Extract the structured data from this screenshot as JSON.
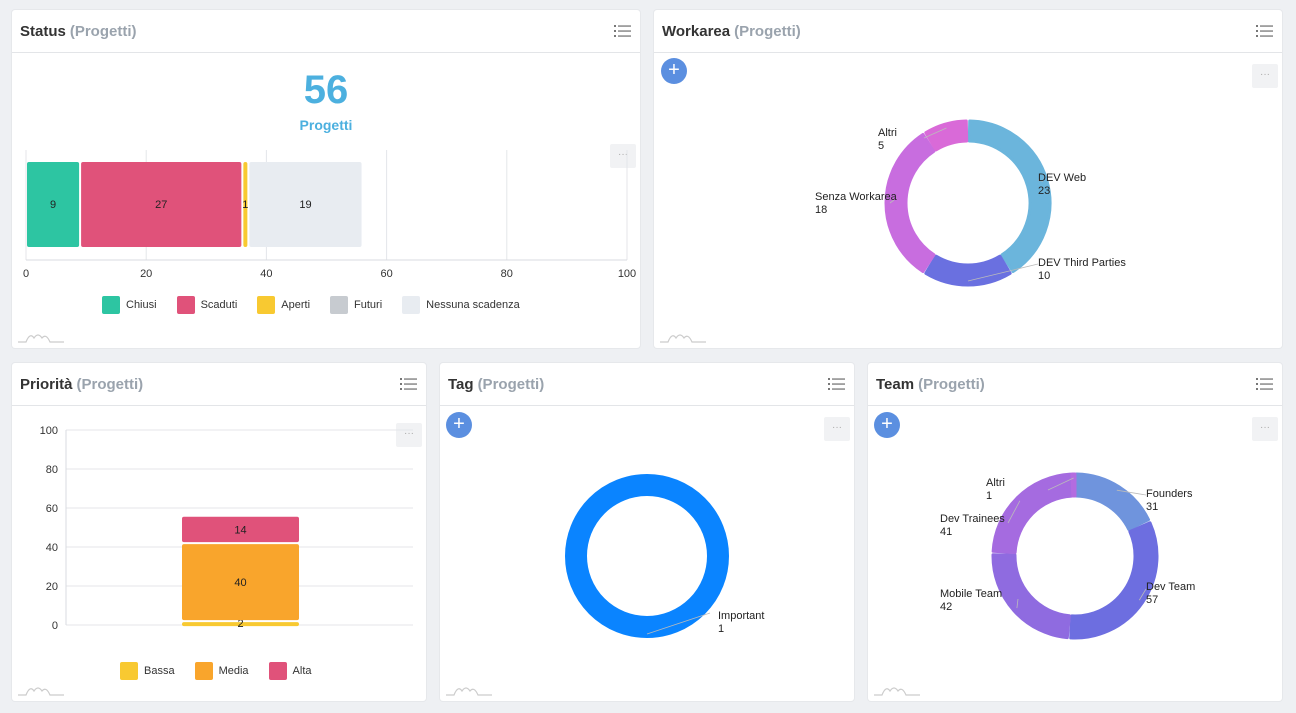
{
  "colors": {
    "accent": "#5b8fe0",
    "number": "#4cb0df",
    "chiusi": "#2dc5a2",
    "scaduti": "#e0527a",
    "aperti": "#f8c931",
    "futuri": "#c7cbd0",
    "nessuna": "#e8ecf1",
    "media": "#f9a52c",
    "important": "#0a84ff"
  },
  "icons": {
    "menu": "list-menu-icon",
    "add": "plus-icon",
    "more": "ellipsis-icon",
    "spark": "sparkline-icon"
  },
  "status": {
    "title": "Status",
    "subtitle": "(Progetti)",
    "total": "56",
    "total_label": "Progetti",
    "chart_data": {
      "type": "bar",
      "orientation": "horizontal-stacked",
      "series": [
        {
          "name": "Chiusi",
          "value": 9,
          "label": "9",
          "color": "#2dc5a2"
        },
        {
          "name": "Scaduti",
          "value": 27,
          "label": "27",
          "color": "#e0527a"
        },
        {
          "name": "Aperti",
          "value": 1,
          "label": "1",
          "color": "#f8c931"
        },
        {
          "name": "Futuri",
          "value": 0,
          "label": "",
          "color": "#c7cbd0"
        },
        {
          "name": "Nessuna scadenza",
          "value": 19,
          "label": "19",
          "color": "#e8ecf1"
        }
      ],
      "xlim": [
        0,
        100
      ],
      "xticks": [
        "0",
        "20",
        "40",
        "60",
        "80",
        "100"
      ],
      "legend_position": "bottom"
    }
  },
  "workarea": {
    "title": "Workarea",
    "subtitle": "(Progetti)",
    "add_label": "+",
    "more_label": "···",
    "chart_data": {
      "type": "pie",
      "variant": "donut",
      "slices": [
        {
          "name": "DEV Web",
          "value": 23,
          "value_label": "23",
          "color": "#6bb5dc"
        },
        {
          "name": "DEV Third Parties",
          "value": 10,
          "value_label": "10",
          "color": "#6a70e0"
        },
        {
          "name": "Senza Workarea",
          "value": 18,
          "value_label": "18",
          "color": "#c86ddf"
        },
        {
          "name": "Altri",
          "value": 5,
          "value_label": "5",
          "color": "#d96ad8"
        }
      ]
    }
  },
  "priorita": {
    "title": "Priorità",
    "subtitle": "(Progetti)",
    "more_label": "···",
    "chart_data": {
      "type": "bar",
      "orientation": "vertical-stacked",
      "categories": [
        ""
      ],
      "series": [
        {
          "name": "Bassa",
          "values": [
            2
          ],
          "label": "2",
          "color": "#f8c931"
        },
        {
          "name": "Media",
          "values": [
            40
          ],
          "label": "40",
          "color": "#f9a52c"
        },
        {
          "name": "Alta",
          "values": [
            14
          ],
          "label": "14",
          "color": "#e0527a"
        }
      ],
      "ylim": [
        0,
        100
      ],
      "yticks": [
        "100",
        "80",
        "60",
        "40",
        "20",
        "0"
      ],
      "legend_position": "bottom"
    }
  },
  "tag": {
    "title": "Tag",
    "subtitle": "(Progetti)",
    "add_label": "+",
    "more_label": "···",
    "chart_data": {
      "type": "pie",
      "variant": "donut",
      "slices": [
        {
          "name": "Important",
          "value": 1,
          "value_label": "1",
          "color": "#0a84ff"
        }
      ]
    }
  },
  "team": {
    "title": "Team",
    "subtitle": "(Progetti)",
    "add_label": "+",
    "more_label": "···",
    "chart_data": {
      "type": "pie",
      "variant": "donut",
      "slices": [
        {
          "name": "Founders",
          "value": 31,
          "value_label": "31",
          "color": "#6f94dd"
        },
        {
          "name": "Dev Team",
          "value": 57,
          "value_label": "57",
          "color": "#6d6ee0"
        },
        {
          "name": "Mobile Team",
          "value": 42,
          "value_label": "42",
          "color": "#8f6be0"
        },
        {
          "name": "Dev Trainees",
          "value": 41,
          "value_label": "41",
          "color": "#a56be0"
        },
        {
          "name": "Altri",
          "value": 1,
          "value_label": "1",
          "color": "#b36ce0"
        }
      ]
    }
  }
}
